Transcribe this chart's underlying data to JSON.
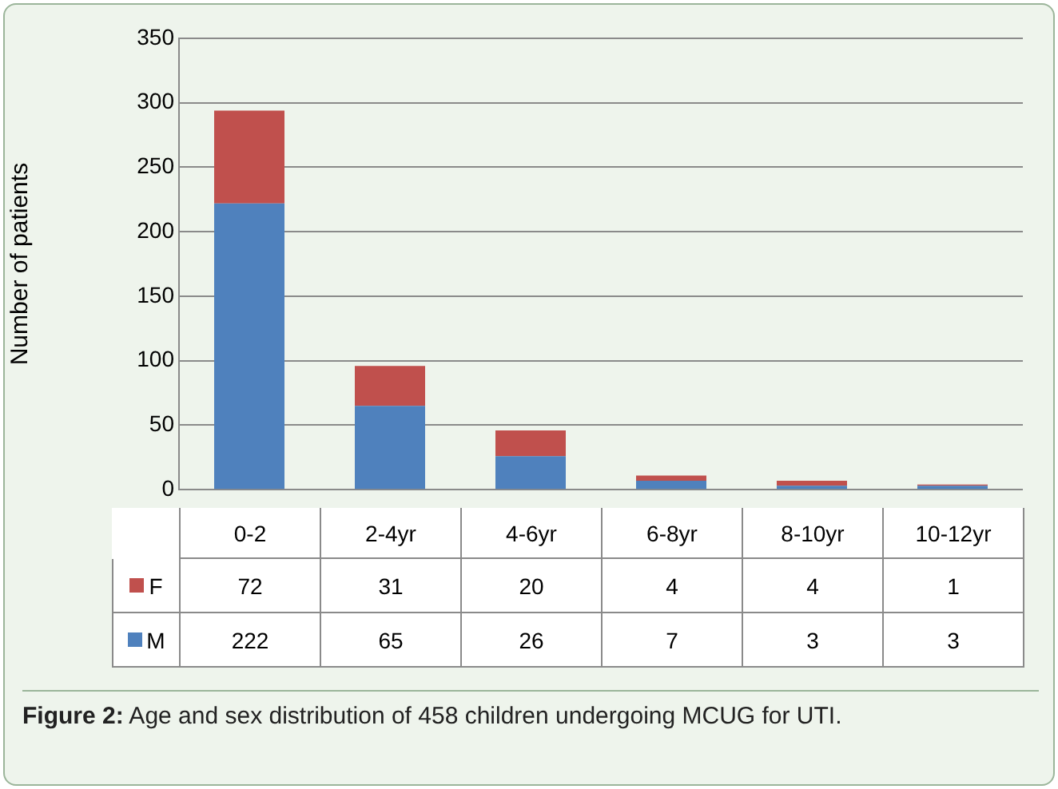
{
  "chart_data": {
    "type": "bar",
    "stacked": true,
    "ylabel": "Number of patients",
    "categories": [
      "0-2",
      "2-4yr",
      "4-6yr",
      "6-8yr",
      "8-10yr",
      "10-12yr"
    ],
    "series": [
      {
        "name": "M",
        "color": "#4f81bd",
        "values": [
          222,
          65,
          26,
          7,
          3,
          3
        ]
      },
      {
        "name": "F",
        "color": "#c0504d",
        "values": [
          72,
          31,
          20,
          4,
          4,
          1
        ]
      }
    ],
    "ylim": [
      0,
      350
    ],
    "yticks": [
      0,
      50,
      100,
      150,
      200,
      250,
      300,
      350
    ],
    "grid": "y",
    "legend": "bottom",
    "data_labels": true,
    "annotations": [
      "Figure 2: Age and sex distribution of 458 children undergoing MCUG for UTI."
    ]
  }
}
